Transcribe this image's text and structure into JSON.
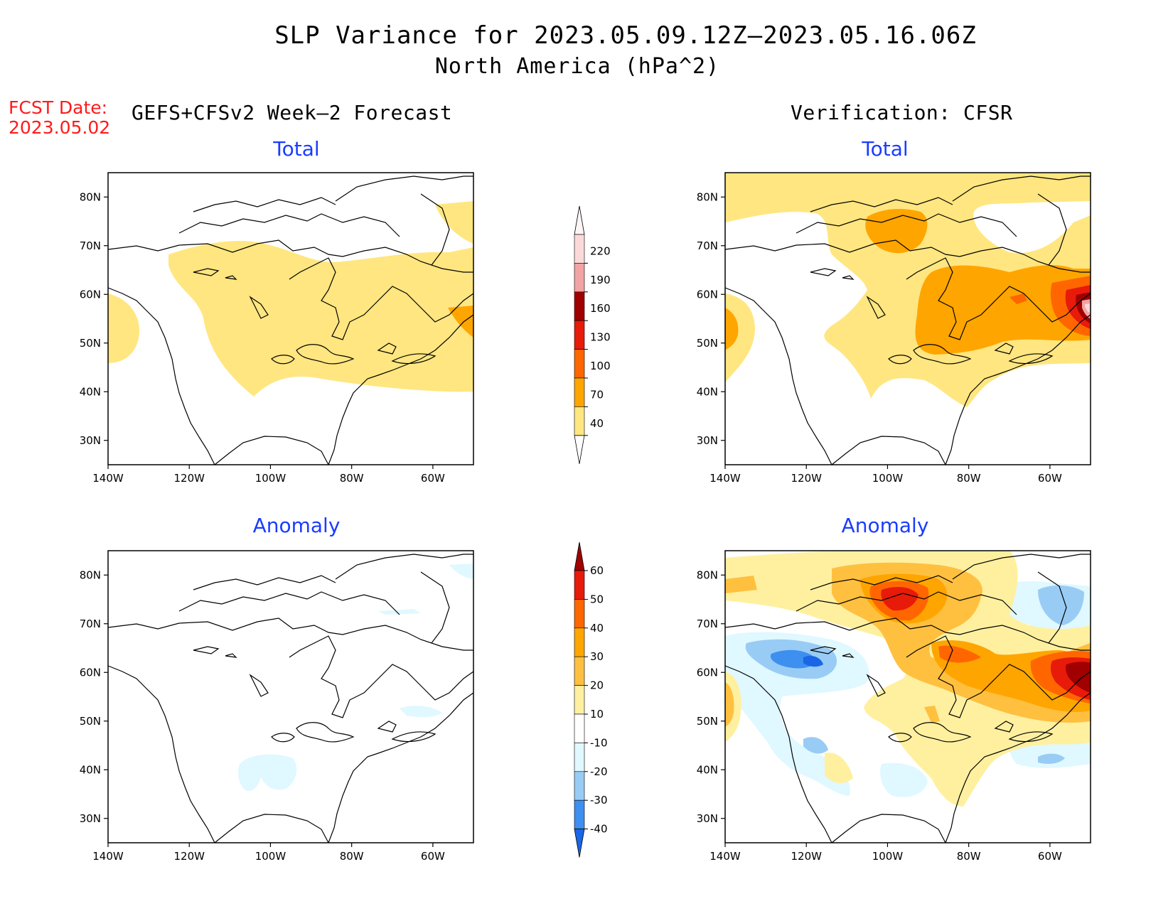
{
  "title": "SLP Variance for 2023.05.09.12Z–2023.05.16.06Z",
  "subtitle": "North America (hPa^2)",
  "fcst_date_label": "FCST Date:",
  "fcst_date_value": "2023.05.02",
  "left_column_title": "GEFS+CFSv2 Week–2 Forecast",
  "right_column_title": "Verification: CFSR",
  "panel_titles": {
    "forecast_total": "Total",
    "forecast_anomaly": "Anomaly",
    "verif_total": "Total",
    "verif_anomaly": "Anomaly"
  },
  "axes": {
    "lon_ticks": [
      "140W",
      "120W",
      "100W",
      "80W",
      "60W"
    ],
    "lat_ticks": [
      "80N",
      "70N",
      "60N",
      "50N",
      "40N",
      "30N"
    ],
    "lon_range": [
      -140,
      -50
    ],
    "lat_range": [
      25,
      85
    ]
  },
  "total_colorbar": {
    "levels": [
      "40",
      "70",
      "100",
      "130",
      "160",
      "190",
      "220"
    ],
    "colors": [
      "#ffe680",
      "#ffa500",
      "#ff6600",
      "#e81a0a",
      "#a00000",
      "#f2a3a3",
      "#fcd9d9"
    ]
  },
  "anomaly_colorbar": {
    "levels": [
      "-40",
      "-30",
      "-20",
      "-10",
      "10",
      "20",
      "30",
      "40",
      "50",
      "60"
    ],
    "colors": [
      "#1a66e6",
      "#3d8ff0",
      "#99ccf5",
      "#e0f8ff",
      "#ffffff",
      "#fff0a0",
      "#ffc040",
      "#ffa500",
      "#ff6600",
      "#e81a0a",
      "#a00000"
    ]
  },
  "fill_colors": {
    "c40": "#ffe680",
    "c70": "#ffa500",
    "c100": "#ff6600",
    "c130": "#e81a0a",
    "c160": "#a00000",
    "c190": "#f2a3a3",
    "c220": "#fcd9d9",
    "a10": "#fff0a0",
    "a20": "#ffc040",
    "a30": "#ffa500",
    "a40": "#ff6600",
    "a50": "#e81a0a",
    "a60": "#a00000",
    "n10": "#e0f8ff",
    "n20": "#99ccf5",
    "n30": "#3d8ff0",
    "n40": "#1a66e6"
  }
}
